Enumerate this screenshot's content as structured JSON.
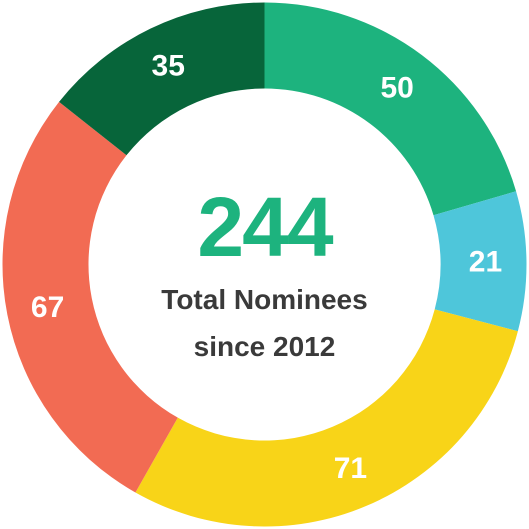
{
  "chart_data": {
    "type": "pie",
    "style": "donut",
    "categories": [
      "",
      "",
      "",
      "",
      ""
    ],
    "values": [
      50,
      21,
      71,
      67,
      35
    ],
    "value_labels": [
      "50",
      "21",
      "71",
      "67",
      "35"
    ],
    "colors": [
      "#1db37e",
      "#4ec6da",
      "#f8d418",
      "#f26b53",
      "#07653a"
    ],
    "start_angle_deg": 0,
    "direction": "clockwise",
    "center_total": "244",
    "center_total_color": "#1db37e",
    "center_caption_line1": "Total Nominees",
    "center_caption_line2": "since 2012",
    "legend": "none"
  }
}
